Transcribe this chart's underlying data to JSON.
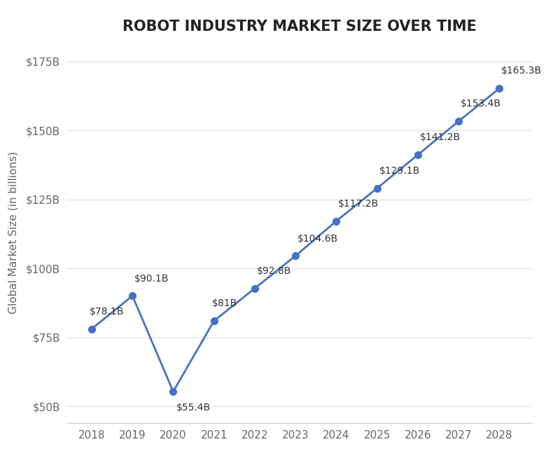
{
  "title": "ROBOT INDUSTRY MARKET SIZE OVER TIME",
  "xlabel": "",
  "ylabel": "Global Market Size (in billions)",
  "years": [
    2018,
    2019,
    2020,
    2021,
    2022,
    2023,
    2024,
    2025,
    2026,
    2027,
    2028
  ],
  "values": [
    78.1,
    90.1,
    55.4,
    81.0,
    92.8,
    104.6,
    117.2,
    129.1,
    141.2,
    153.4,
    165.3
  ],
  "labels": [
    "$78.1B",
    "$90.1B",
    "$55.4B",
    "$81B",
    "$92.8B",
    "$104.6B",
    "$117.2B",
    "$129.1B",
    "$141.2B",
    "$153.4B",
    "$165.3B"
  ],
  "line_color": "#4472C4",
  "marker_color": "#4472C4",
  "marker_size": 7,
  "line_width": 2.0,
  "yticks": [
    50,
    75,
    100,
    125,
    150,
    175
  ],
  "ytick_labels": [
    "$50B",
    "$75B",
    "$100B",
    "$125B",
    "$150B",
    "$175B"
  ],
  "ylim": [
    44,
    182
  ],
  "xlim": [
    2017.4,
    2028.8
  ],
  "title_fontsize": 15,
  "label_fontsize": 10,
  "tick_fontsize": 11,
  "ylabel_fontsize": 11,
  "background_color": "#ffffff",
  "grid_color": "#e0e0e0",
  "label_offsets": [
    [
      -0.05,
      4.5,
      "left"
    ],
    [
      0.05,
      4.5,
      "left"
    ],
    [
      0.08,
      -7.5,
      "left"
    ],
    [
      -0.05,
      4.5,
      "left"
    ],
    [
      0.05,
      4.5,
      "left"
    ],
    [
      0.05,
      4.5,
      "left"
    ],
    [
      0.05,
      4.5,
      "left"
    ],
    [
      0.05,
      4.5,
      "left"
    ],
    [
      0.05,
      4.5,
      "left"
    ],
    [
      0.05,
      4.5,
      "left"
    ],
    [
      0.05,
      4.5,
      "left"
    ]
  ]
}
